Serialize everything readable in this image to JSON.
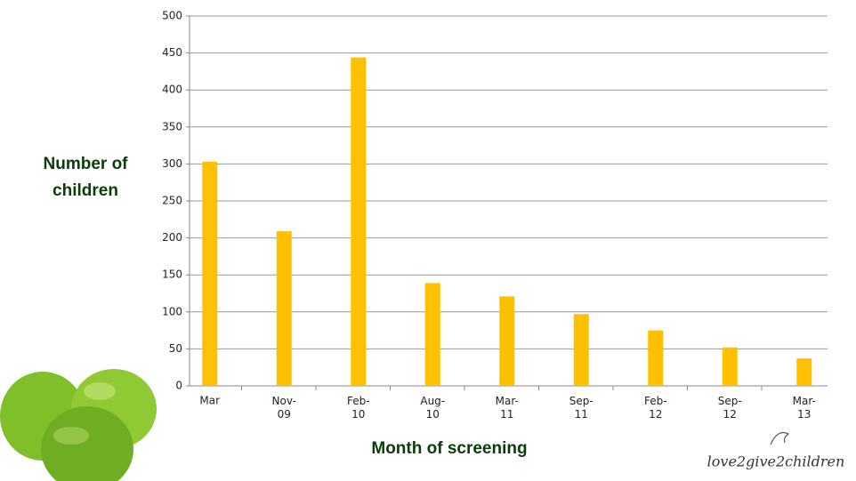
{
  "chart_data": {
    "type": "bar",
    "y_label": "Number of children",
    "x_label": "Month of screening",
    "categories": [
      "Mar",
      "Nov-09",
      "Feb-10",
      "Aug-10",
      "Mar-11",
      "Sep-11",
      "Feb-12",
      "Sep-12",
      "Mar-13"
    ],
    "values": [
      303,
      209,
      444,
      139,
      121,
      97,
      75,
      52,
      37
    ],
    "color": "#ffc000",
    "ylim": [
      0,
      500
    ],
    "yticks": [
      0,
      50,
      100,
      150,
      200,
      250,
      300,
      350,
      400,
      450,
      500
    ],
    "grid": true
  },
  "logo": "love2give2children"
}
